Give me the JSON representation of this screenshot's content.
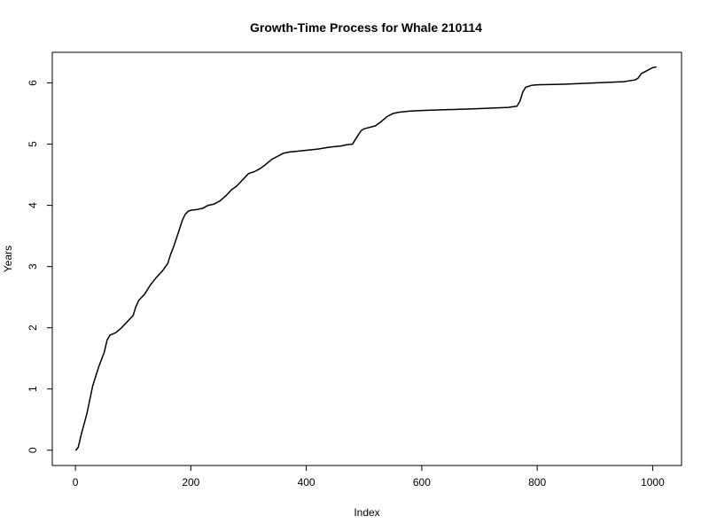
{
  "chart_data": {
    "type": "line",
    "title": "Growth-Time Process for Whale 210114",
    "xlabel": "Index",
    "ylabel": "Years",
    "xlim": [
      -40,
      1050
    ],
    "ylim": [
      -0.25,
      6.5
    ],
    "xticks": [
      0,
      200,
      400,
      600,
      800,
      1000
    ],
    "yticks": [
      0,
      1,
      2,
      3,
      4,
      5,
      6
    ],
    "grid": false,
    "legend": "none",
    "line_color": "#000000",
    "series": [
      {
        "x": [
          1,
          5,
          10,
          20,
          30,
          35,
          40,
          50,
          55,
          60,
          70,
          80,
          90,
          100,
          105,
          110,
          115,
          120,
          130,
          140,
          150,
          160,
          165,
          170,
          180,
          185,
          190,
          195,
          200,
          210,
          220,
          230,
          240,
          250,
          260,
          270,
          280,
          290,
          300,
          310,
          320,
          330,
          340,
          350,
          360,
          370,
          380,
          400,
          420,
          440,
          460,
          470,
          480,
          490,
          495,
          500,
          520,
          530,
          540,
          550,
          560,
          580,
          600,
          700,
          750,
          765,
          770,
          775,
          780,
          790,
          800,
          850,
          900,
          950,
          970,
          975,
          980,
          990,
          1000,
          1006
        ],
        "y": [
          0.0,
          0.05,
          0.25,
          0.6,
          1.05,
          1.2,
          1.35,
          1.6,
          1.8,
          1.88,
          1.92,
          2.0,
          2.1,
          2.2,
          2.35,
          2.45,
          2.5,
          2.55,
          2.7,
          2.82,
          2.92,
          3.05,
          3.2,
          3.32,
          3.6,
          3.75,
          3.85,
          3.9,
          3.92,
          3.93,
          3.95,
          4.0,
          4.02,
          4.07,
          4.15,
          4.25,
          4.32,
          4.42,
          4.52,
          4.55,
          4.6,
          4.67,
          4.75,
          4.8,
          4.85,
          4.87,
          4.88,
          4.9,
          4.92,
          4.95,
          4.97,
          4.99,
          5.0,
          5.15,
          5.22,
          5.25,
          5.3,
          5.37,
          5.45,
          5.5,
          5.52,
          5.54,
          5.55,
          5.58,
          5.6,
          5.62,
          5.7,
          5.85,
          5.93,
          5.96,
          5.97,
          5.98,
          6.0,
          6.02,
          6.05,
          6.08,
          6.15,
          6.2,
          6.25,
          6.26
        ]
      }
    ]
  }
}
